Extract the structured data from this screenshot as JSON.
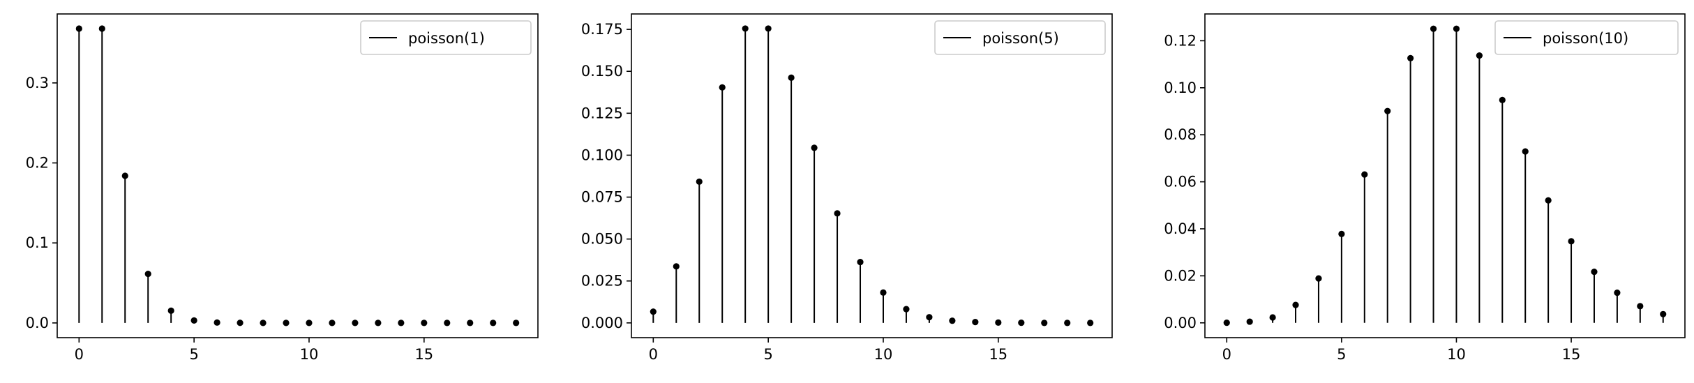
{
  "chart_data": [
    {
      "type": "stem",
      "legend": "poisson(1)",
      "legend_position": "top-right",
      "x": [
        0,
        1,
        2,
        3,
        4,
        5,
        6,
        7,
        8,
        9,
        10,
        11,
        12,
        13,
        14,
        15,
        16,
        17,
        18,
        19
      ],
      "values": [
        0.3679,
        0.3679,
        0.1839,
        0.0613,
        0.0153,
        0.0031,
        0.0005,
        0.0001,
        0,
        0,
        0,
        0,
        0,
        0,
        0,
        0,
        0,
        0,
        0,
        0
      ],
      "xlim": [
        -0.95,
        19.95
      ],
      "ylim": [
        -0.0184,
        0.3862
      ],
      "xticks": [
        0,
        5,
        10,
        15
      ],
      "xtick_labels": [
        "0",
        "5",
        "10",
        "15"
      ],
      "yticks": [
        0.0,
        0.1,
        0.2,
        0.3
      ],
      "ytick_labels": [
        "0.0",
        "0.1",
        "0.2",
        "0.3"
      ],
      "grid": false,
      "color": "#000000"
    },
    {
      "type": "stem",
      "legend": "poisson(5)",
      "legend_position": "top-right",
      "x": [
        0,
        1,
        2,
        3,
        4,
        5,
        6,
        7,
        8,
        9,
        10,
        11,
        12,
        13,
        14,
        15,
        16,
        17,
        18,
        19
      ],
      "values": [
        0.0067,
        0.0337,
        0.0842,
        0.1404,
        0.1755,
        0.1755,
        0.1462,
        0.1044,
        0.0653,
        0.0363,
        0.0181,
        0.0082,
        0.0034,
        0.0013,
        0.0005,
        0.0002,
        0.0001,
        0,
        0,
        0
      ],
      "xlim": [
        -0.95,
        19.95
      ],
      "ylim": [
        -0.0088,
        0.1842
      ],
      "xticks": [
        0,
        5,
        10,
        15
      ],
      "xtick_labels": [
        "0",
        "5",
        "10",
        "15"
      ],
      "yticks": [
        0.0,
        0.025,
        0.05,
        0.075,
        0.1,
        0.125,
        0.15,
        0.175
      ],
      "ytick_labels": [
        "0.000",
        "0.025",
        "0.050",
        "0.075",
        "0.100",
        "0.125",
        "0.150",
        "0.175"
      ],
      "grid": false,
      "color": "#000000"
    },
    {
      "type": "stem",
      "legend": "poisson(10)",
      "legend_position": "top-right",
      "x": [
        0,
        1,
        2,
        3,
        4,
        5,
        6,
        7,
        8,
        9,
        10,
        11,
        12,
        13,
        14,
        15,
        16,
        17,
        18,
        19
      ],
      "values": [
        5e-05,
        0.0005,
        0.0023,
        0.0076,
        0.0189,
        0.0378,
        0.0631,
        0.0901,
        0.1126,
        0.1251,
        0.1251,
        0.1137,
        0.0948,
        0.0729,
        0.0521,
        0.0347,
        0.0217,
        0.0128,
        0.0071,
        0.0037
      ],
      "xlim": [
        -0.95,
        19.95
      ],
      "ylim": [
        -0.0063,
        0.1314
      ],
      "xticks": [
        0,
        5,
        10,
        15
      ],
      "xtick_labels": [
        "0",
        "5",
        "10",
        "15"
      ],
      "yticks": [
        0.0,
        0.02,
        0.04,
        0.06,
        0.08,
        0.1,
        0.12
      ],
      "ytick_labels": [
        "0.00",
        "0.02",
        "0.04",
        "0.06",
        "0.08",
        "0.10",
        "0.12"
      ],
      "grid": false,
      "color": "#000000"
    }
  ]
}
